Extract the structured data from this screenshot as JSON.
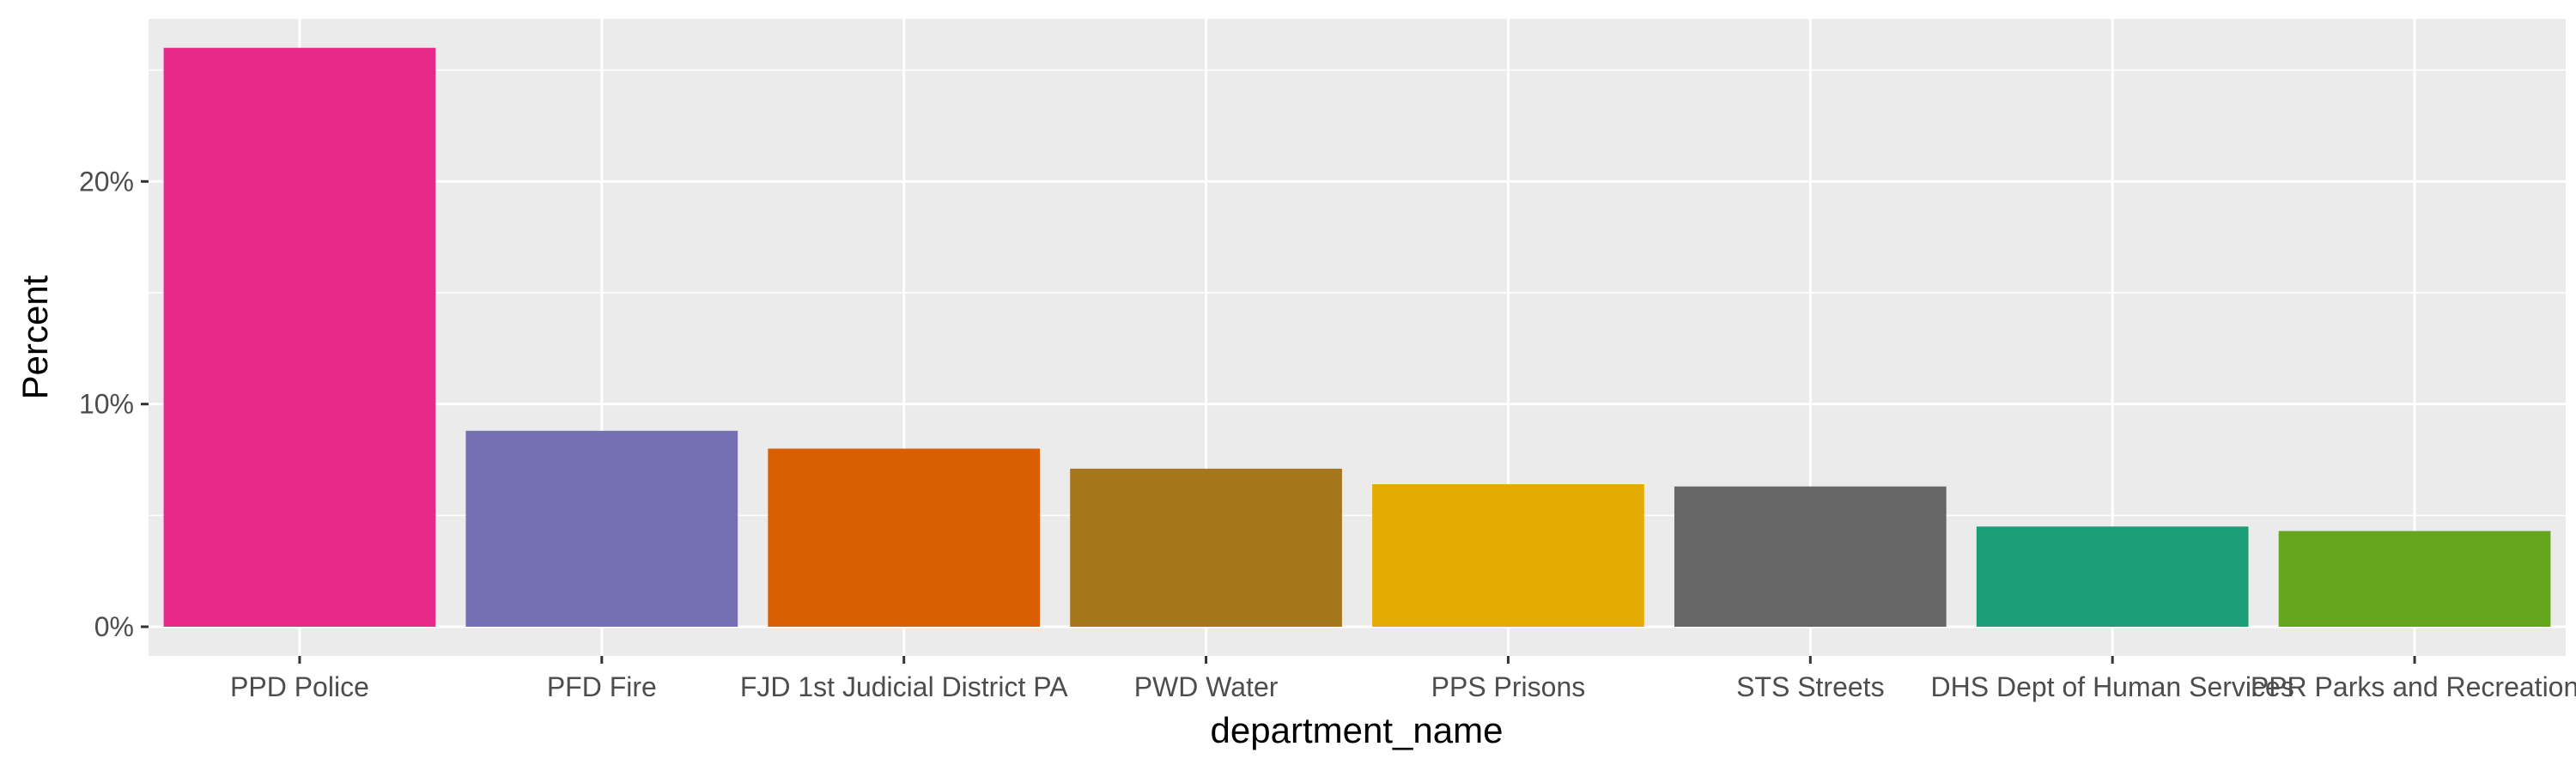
{
  "chart_data": {
    "type": "bar",
    "categories": [
      "PPD Police",
      "PFD Fire",
      "FJD 1st Judicial District PA",
      "PWD Water",
      "PPS Prisons",
      "STS Streets",
      "DHS Dept of Human Services",
      "PPR Parks and Recreation"
    ],
    "values": [
      26.0,
      8.8,
      8.0,
      7.1,
      6.4,
      6.3,
      4.5,
      4.3
    ],
    "colors": [
      "#E7298A",
      "#7570B3",
      "#D95F02",
      "#A6761D",
      "#E6AB02",
      "#666666",
      "#1B9E77",
      "#66A61E"
    ],
    "xlabel": "department_name",
    "ylabel": "Percent",
    "ylim": [
      0,
      27.3
    ],
    "yticks": [
      0,
      10,
      20
    ],
    "ytick_labels": [
      "0%",
      "10%",
      "20%"
    ],
    "grid": true,
    "panel_background": "#EBEBEB",
    "legend": "none"
  }
}
